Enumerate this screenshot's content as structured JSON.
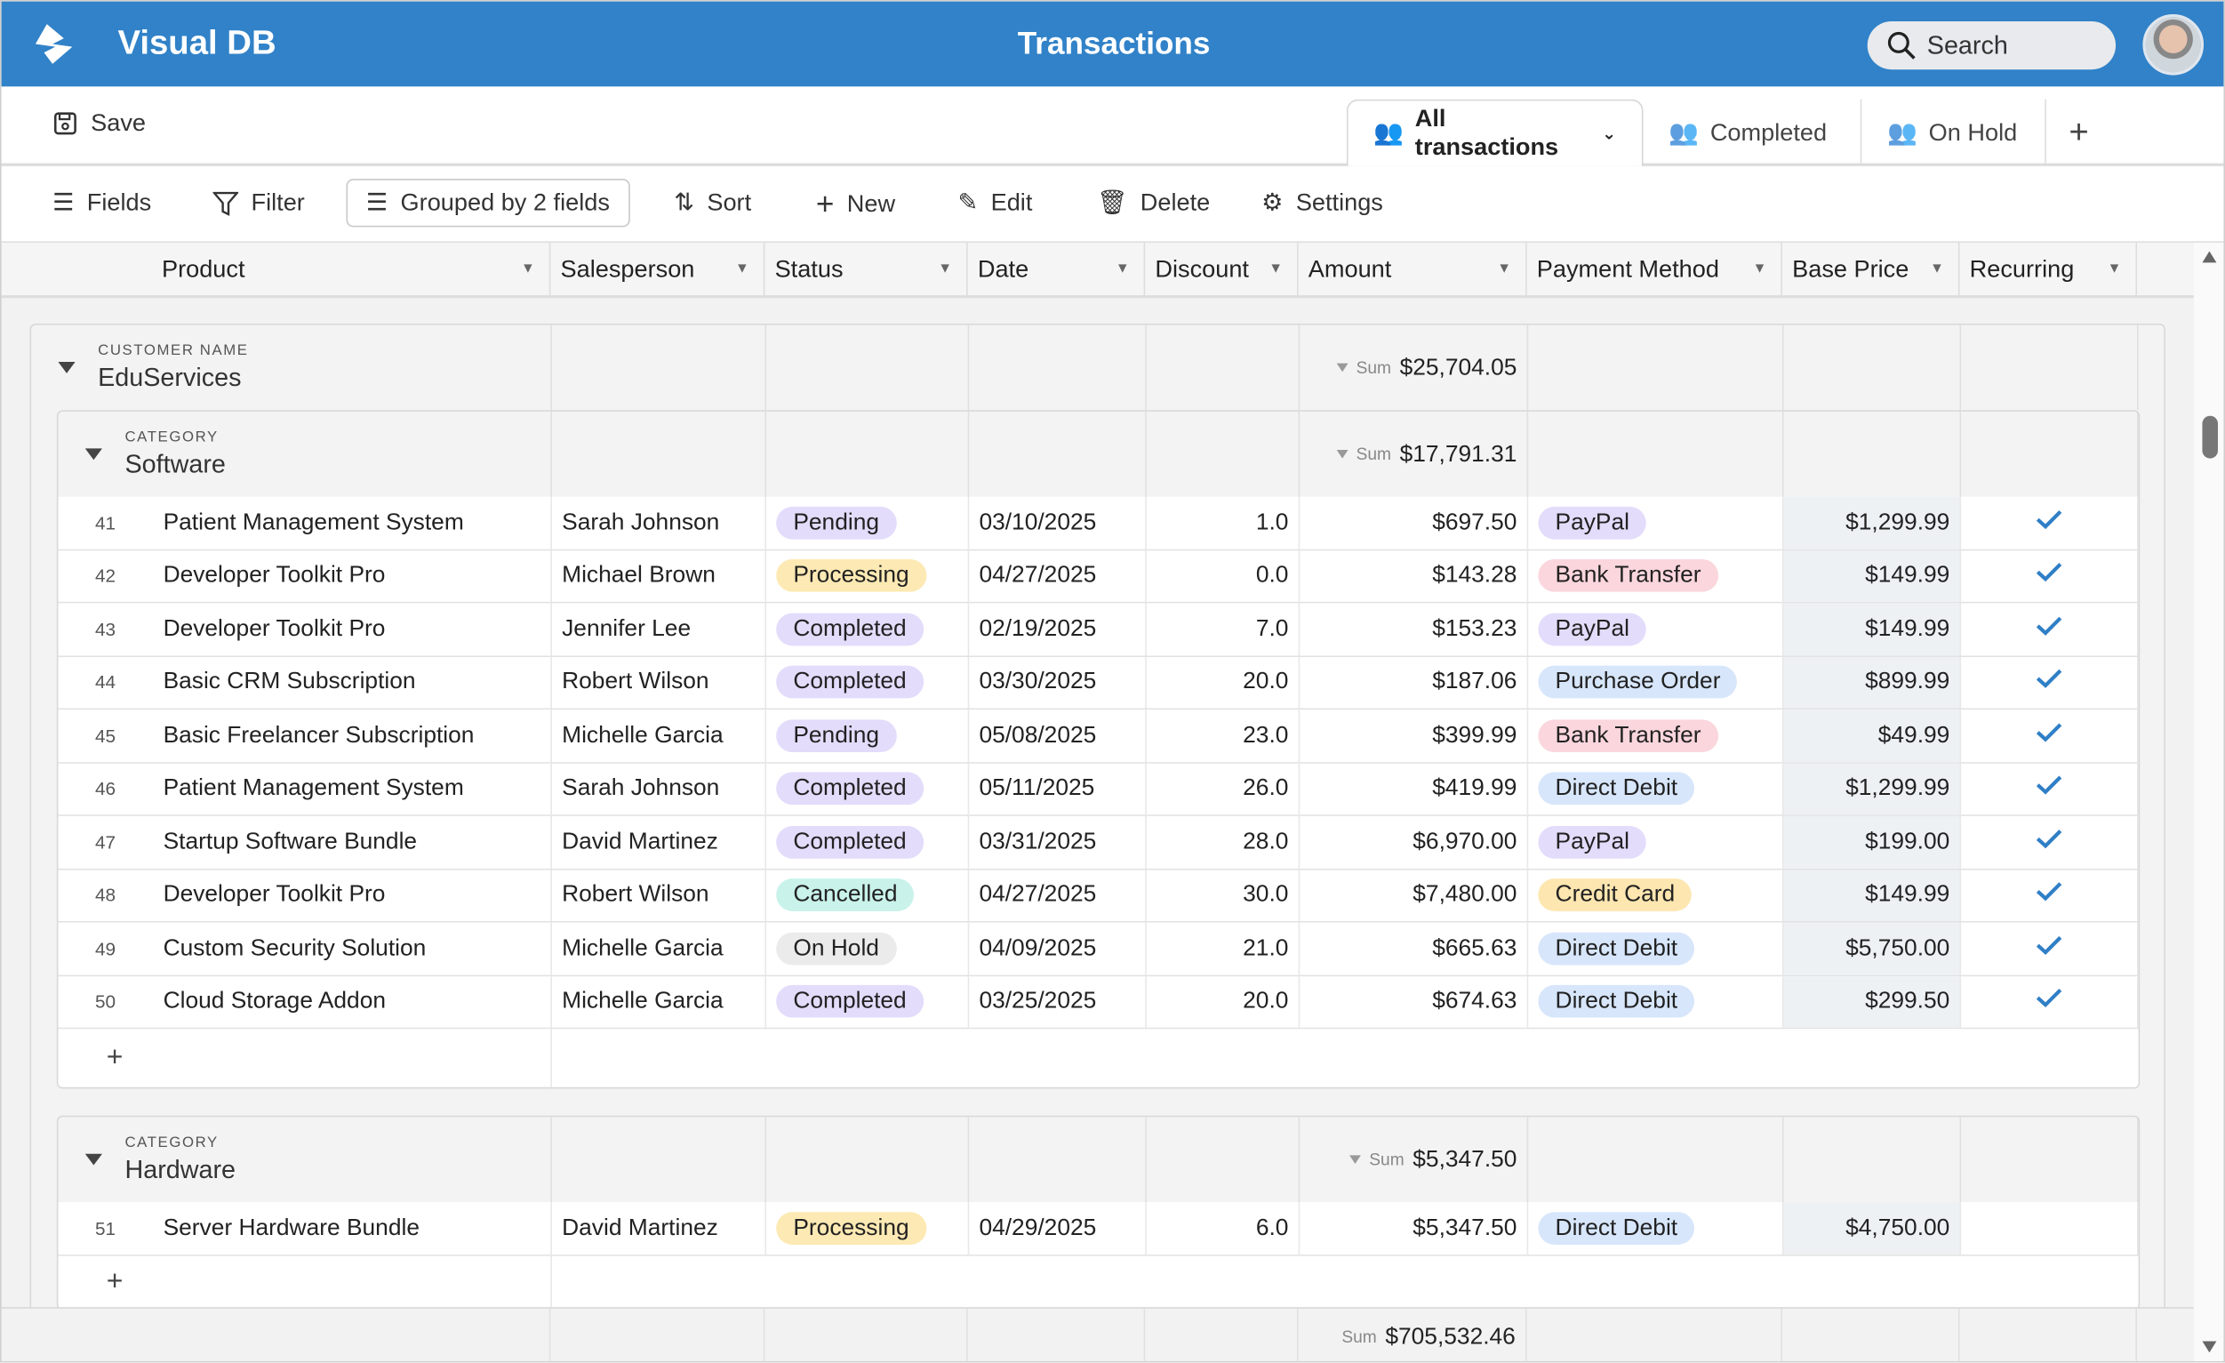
{
  "app": {
    "name": "Visual DB",
    "title": "Transactions",
    "search_placeholder": "Search"
  },
  "savebar": {
    "save_label": "Save"
  },
  "views": [
    {
      "label": "All transactions",
      "active": true
    },
    {
      "label": "Completed"
    },
    {
      "label": "On Hold"
    }
  ],
  "toolbar": {
    "fields": "Fields",
    "filter": "Filter",
    "grouped": "Grouped by 2 fields",
    "sort": "Sort",
    "new": "New",
    "edit": "Edit",
    "delete": "Delete",
    "settings": "Settings"
  },
  "columns": [
    "Product",
    "Salesperson",
    "Status",
    "Date",
    "Discount",
    "Amount",
    "Payment Method",
    "Base Price",
    "Recurring"
  ],
  "group": {
    "label": "CUSTOMER NAME",
    "value": "EduServices",
    "sum_label": "Sum",
    "sum": "$25,704.05",
    "categories": [
      {
        "label": "CATEGORY",
        "value": "Software",
        "sum_label": "Sum",
        "sum": "$17,791.31",
        "rows": [
          {
            "num": "41",
            "product": "Patient Management System",
            "salesperson": "Sarah Johnson",
            "status": "Pending",
            "date": "03/10/2025",
            "discount": "1.0",
            "amount": "$697.50",
            "payment": "PayPal",
            "base_price": "$1,299.99",
            "recurring": true
          },
          {
            "num": "42",
            "product": "Developer Toolkit Pro",
            "salesperson": "Michael Brown",
            "status": "Processing",
            "date": "04/27/2025",
            "discount": "0.0",
            "amount": "$143.28",
            "payment": "Bank Transfer",
            "base_price": "$149.99",
            "recurring": true
          },
          {
            "num": "43",
            "product": "Developer Toolkit Pro",
            "salesperson": "Jennifer Lee",
            "status": "Completed",
            "date": "02/19/2025",
            "discount": "7.0",
            "amount": "$153.23",
            "payment": "PayPal",
            "base_price": "$149.99",
            "recurring": true
          },
          {
            "num": "44",
            "product": "Basic CRM Subscription",
            "salesperson": "Robert Wilson",
            "status": "Completed",
            "date": "03/30/2025",
            "discount": "20.0",
            "amount": "$187.06",
            "payment": "Purchase Order",
            "base_price": "$899.99",
            "recurring": true
          },
          {
            "num": "45",
            "product": "Basic Freelancer Subscription",
            "salesperson": "Michelle Garcia",
            "status": "Pending",
            "date": "05/08/2025",
            "discount": "23.0",
            "amount": "$399.99",
            "payment": "Bank Transfer",
            "base_price": "$49.99",
            "recurring": true
          },
          {
            "num": "46",
            "product": "Patient Management System",
            "salesperson": "Sarah Johnson",
            "status": "Completed",
            "date": "05/11/2025",
            "discount": "26.0",
            "amount": "$419.99",
            "payment": "Direct Debit",
            "base_price": "$1,299.99",
            "recurring": true
          },
          {
            "num": "47",
            "product": "Startup Software Bundle",
            "salesperson": "David Martinez",
            "status": "Completed",
            "date": "03/31/2025",
            "discount": "28.0",
            "amount": "$6,970.00",
            "payment": "PayPal",
            "base_price": "$199.00",
            "recurring": true
          },
          {
            "num": "48",
            "product": "Developer Toolkit Pro",
            "salesperson": "Robert Wilson",
            "status": "Cancelled",
            "date": "04/27/2025",
            "discount": "30.0",
            "amount": "$7,480.00",
            "payment": "Credit Card",
            "base_price": "$149.99",
            "recurring": true
          },
          {
            "num": "49",
            "product": "Custom Security Solution",
            "salesperson": "Michelle Garcia",
            "status": "On Hold",
            "date": "04/09/2025",
            "discount": "21.0",
            "amount": "$665.63",
            "payment": "Direct Debit",
            "base_price": "$5,750.00",
            "recurring": true
          },
          {
            "num": "50",
            "product": "Cloud Storage Addon",
            "salesperson": "Michelle Garcia",
            "status": "Completed",
            "date": "03/25/2025",
            "discount": "20.0",
            "amount": "$674.63",
            "payment": "Direct Debit",
            "base_price": "$299.50",
            "recurring": true
          }
        ]
      },
      {
        "label": "CATEGORY",
        "value": "Hardware",
        "sum_label": "Sum",
        "sum": "$5,347.50",
        "rows": [
          {
            "num": "51",
            "product": "Server Hardware Bundle",
            "salesperson": "David Martinez",
            "status": "Processing",
            "date": "04/29/2025",
            "discount": "6.0",
            "amount": "$5,347.50",
            "payment": "Direct Debit",
            "base_price": "$4,750.00",
            "recurring": false
          }
        ]
      }
    ]
  },
  "footer": {
    "sum_label": "Sum",
    "sum": "$705,532.46"
  },
  "colors": {
    "brand": "#3182c8",
    "status": {
      "Pending": "#e3dcfb",
      "Completed": "#e3dcfb",
      "Processing": "#fde9b3",
      "Cancelled": "#c9f2ea",
      "On Hold": "#ebebeb"
    },
    "payment": {
      "PayPal": "#e3dcfb",
      "Bank Transfer": "#fbd6dd",
      "Purchase Order": "#d7e6fb",
      "Direct Debit": "#d7e6fb",
      "Credit Card": "#fde6b0"
    },
    "check": "#2f7fc6"
  }
}
